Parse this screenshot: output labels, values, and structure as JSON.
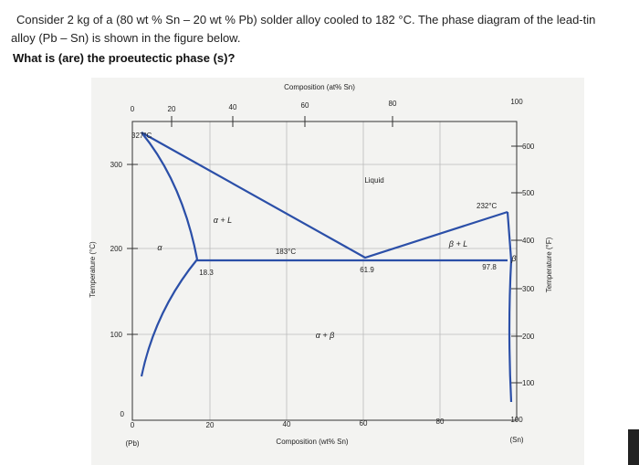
{
  "question": {
    "lines": [
      "Consider 2 kg of a (80 wt % Sn – 20 wt % Pb) solder alloy cooled to 182 °C. The phase diagram of the lead-tin",
      "alloy (Pb – Sn) is shown in the figure below.",
      "What is (are) the proeutectic phase (s)?"
    ]
  },
  "diagram": {
    "top_axis_title": "Composition (at% Sn)",
    "top_ticks": [
      "0",
      "20",
      "40",
      "60",
      "80",
      "100"
    ],
    "bottom_axis_title": "Composition (wt% Sn)",
    "bottom_ticks": [
      "0",
      "20",
      "40",
      "60",
      "80",
      "100"
    ],
    "left_axis_title": "Temperature (°C)",
    "left_ticks": [
      "300",
      "200",
      "100",
      "0"
    ],
    "right_axis_title": "Temperature (°F)",
    "right_ticks": [
      "600",
      "500",
      "400",
      "300",
      "200",
      "100"
    ],
    "end_labels": [
      "(Pb)",
      "(Sn)"
    ],
    "labels": {
      "pb_melt": "327°C",
      "sn_melt": "232°C",
      "liquid": "Liquid",
      "alpha_l": "α + L",
      "alpha": "α",
      "eutectic_t": "183°C",
      "beta_l": "β + L",
      "beta": "β",
      "alpha_max": "18.3",
      "eutectic_c": "61.9",
      "beta_min": "97.8",
      "alpha_beta": "α + β"
    }
  }
}
